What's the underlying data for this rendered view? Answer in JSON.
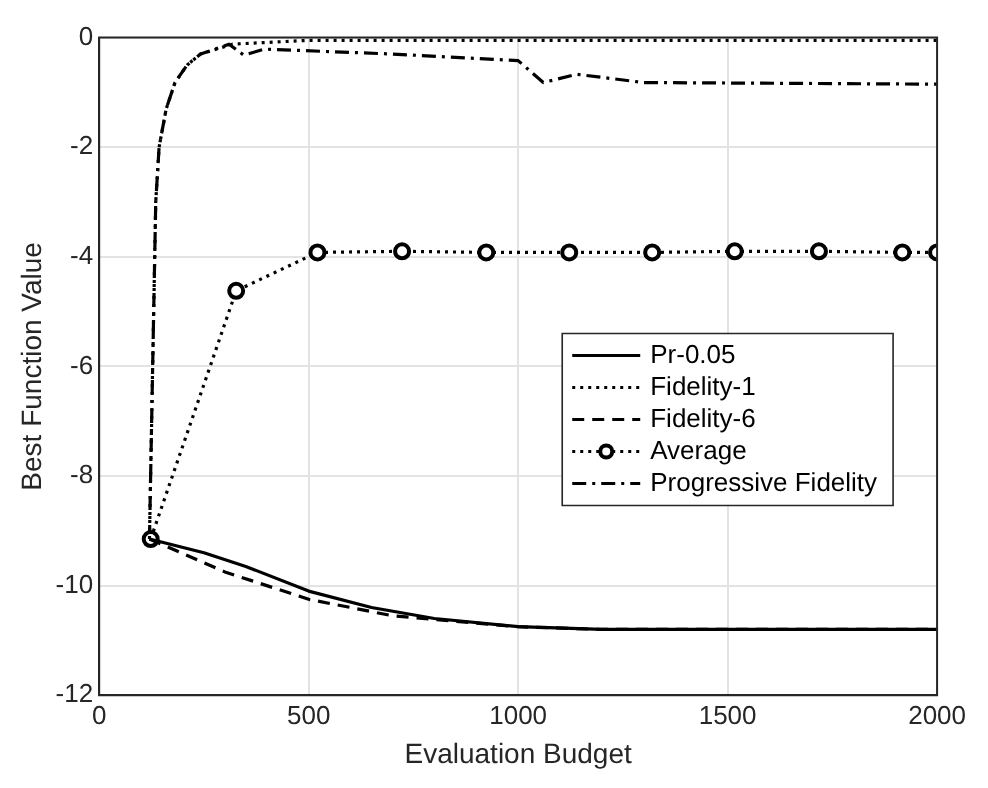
{
  "chart_data": {
    "type": "line",
    "xlabel": "Evaluation Budget",
    "ylabel": "Best Function Value",
    "xlim": [
      0,
      2000
    ],
    "xticks": [
      0,
      500,
      1000,
      1500,
      2000
    ],
    "ylim": [
      -12,
      0
    ],
    "yticks": [
      -12,
      -10,
      -8,
      -6,
      -4,
      -2,
      0
    ],
    "grid": true,
    "legend": "right",
    "marker": "none",
    "series": [
      {
        "name": "Pr-0.05",
        "color": "#000000",
        "line_style": "solid",
        "x": [
          120,
          250,
          350,
          500,
          650,
          800,
          1000,
          1200,
          2000
        ],
        "values": [
          -9.15,
          -9.4,
          -9.65,
          -10.1,
          -10.4,
          -10.6,
          -10.75,
          -10.8,
          -10.8
        ]
      },
      {
        "name": "Fidelity-1",
        "color": "#000000",
        "line_style": "dotted",
        "x": [
          120,
          135,
          143,
          160,
          181,
          210,
          242,
          318,
          500,
          2000
        ],
        "values": [
          -9.15,
          -3,
          -2,
          -1.3,
          -0.82,
          -0.5,
          -0.3,
          -0.12,
          -0.05,
          -0.05
        ]
      },
      {
        "name": "Fidelity-6",
        "color": "#000000",
        "line_style": "dashed",
        "x": [
          120,
          300,
          500,
          700,
          1000,
          1200,
          2000
        ],
        "values": [
          -9.15,
          -9.75,
          -10.25,
          -10.55,
          -10.75,
          -10.8,
          -10.8
        ]
      },
      {
        "name": "Average",
        "color": "#000000",
        "line_style": "dotted",
        "marker": "circle",
        "x": [
          123,
          327,
          521,
          723,
          924,
          1122,
          1320,
          1517,
          1718,
          1917,
          2000
        ],
        "values": [
          -9.15,
          -4.62,
          -3.92,
          -3.9,
          -3.92,
          -3.92,
          -3.92,
          -3.9,
          -3.9,
          -3.92,
          -3.92
        ]
      },
      {
        "name": "Progressive Fidelity",
        "color": "#000000",
        "line_style": "dashdot",
        "x": [
          120,
          135,
          143,
          160,
          181,
          210,
          242,
          310,
          345,
          395,
          700,
          1000,
          1060,
          1140,
          1300,
          2000
        ],
        "values": [
          -9.15,
          -3,
          -2,
          -1.3,
          -0.82,
          -0.5,
          -0.3,
          -0.12,
          -0.32,
          -0.21,
          -0.3,
          -0.42,
          -0.82,
          -0.67,
          -0.82,
          -0.85
        ]
      }
    ]
  }
}
